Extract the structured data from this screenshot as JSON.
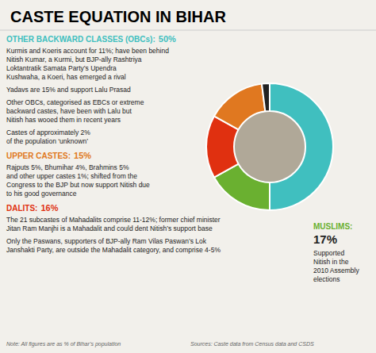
{
  "chart_data": {
    "type": "pie",
    "title": "CASTE EQUATION IN BIHAR",
    "values": [
      50,
      17,
      16,
      15,
      2
    ],
    "colors": [
      "#40bfbf",
      "#6ab030",
      "#e03010",
      "#e07820",
      "#222222"
    ],
    "annotations": [
      {
        "heading": "OTHER BACKWARD CLASSES (OBCs):",
        "pct": "50%",
        "color": "#40bfbf",
        "lines": [
          [
            "Kurmis and Koeris account for 11%; have been behind",
            "Nitish Kumar, a Kurmi, but BJP-ally Rashtriya",
            "Loktantratik Samata Party’s Upendra",
            "Kushwaha, a Koeri, has emerged a rival"
          ],
          [
            "Yadavs are 15% and support Lalu Prasad"
          ],
          [
            "Other OBCs, categorised as EBCs or extreme",
            "backward castes, have been with Lalu but",
            "Nitish has wooed them in recent years"
          ],
          [
            "Castes of approximately 2%",
            "of the population ‘unknown’"
          ]
        ]
      },
      {
        "heading": "UPPER CASTES:",
        "pct": "15%",
        "color": "#e07820",
        "lines": [
          [
            "Rajputs 5%, Bhumihar 4%, Brahmins 5%",
            "and other upper castes 1%; shifted from the",
            "Congress to the BJP but now support Nitish due",
            "to his good governance"
          ]
        ]
      },
      {
        "heading": "DALITS:",
        "pct": "16%",
        "color": "#e03010",
        "lines": [
          [
            "The 21 subcastes of Mahadalits comprise 11-12%; former chief minister",
            "Jitan Ram Manjhi is a Mahadalit and could dent Nitish’s support base"
          ],
          [
            "Only the Paswans, supporters of BJP-ally Ram Vilas Paswan’s Lok",
            "Janshakti Party, are outside the Mahadalit category, and comprise 4-5%"
          ]
        ]
      },
      {
        "heading": "MUSLIMS:",
        "pct": "17%",
        "color": "#6ab030",
        "lines": [
          [
            "Supported",
            "Nitish in the",
            "2010 Assembly",
            "elections"
          ]
        ]
      },
      {
        "text": "Note: All figures are as % of Bihar’s population"
      },
      {
        "text": "Sources: Caste data from Census data and CSDS"
      }
    ]
  }
}
